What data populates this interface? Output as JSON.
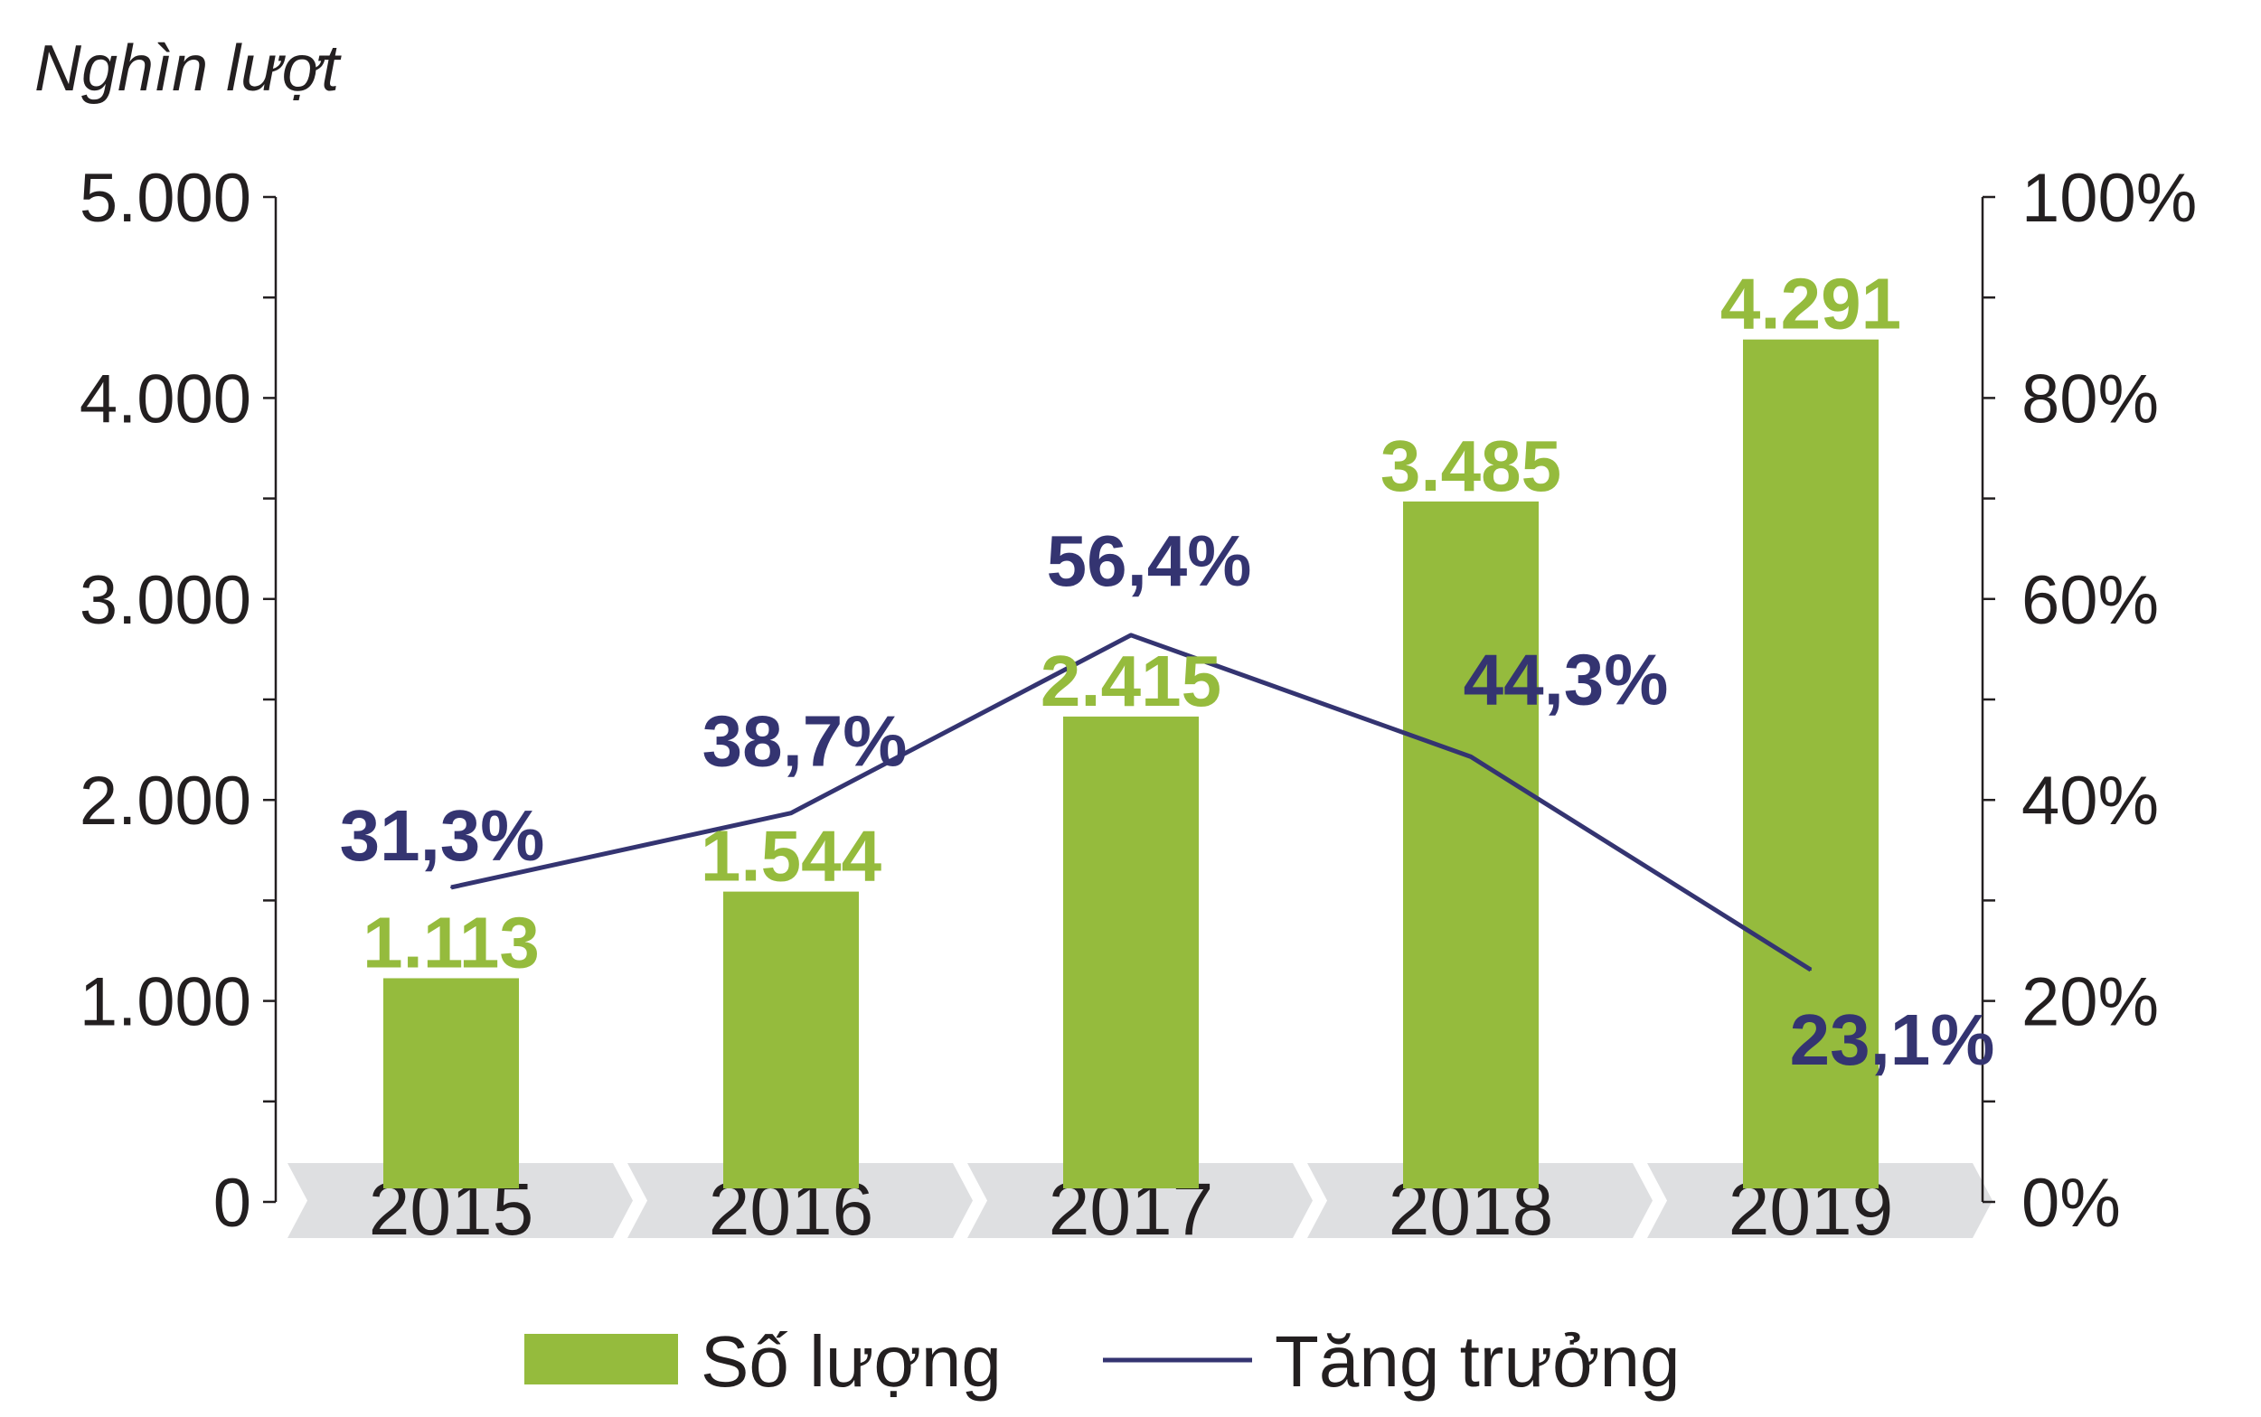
{
  "chart_data": {
    "type": "bar",
    "unit_label": "Nghìn lượt",
    "categories": [
      "2015",
      "2016",
      "2017",
      "2018",
      "2019"
    ],
    "bar_series": {
      "name": "Số lượng",
      "values": [
        1113,
        1544,
        2415,
        3485,
        4291
      ],
      "labels": [
        "1.113",
        "1.544",
        "2.415",
        "3.485",
        "4.291"
      ]
    },
    "line_series": {
      "name": "Tăng trưởng",
      "values": [
        31.3,
        38.7,
        56.4,
        44.3,
        23.1
      ],
      "labels": [
        "31,3%",
        "38,7%",
        "56,4%",
        "44,3%",
        "23,1%"
      ]
    },
    "y_left": {
      "min": 0,
      "max": 5000,
      "ticks": [
        0,
        1000,
        2000,
        3000,
        4000,
        5000
      ],
      "tick_labels": [
        "0",
        "1.000",
        "2.000",
        "3.000",
        "4.000",
        "5.000"
      ]
    },
    "y_right": {
      "min": 0,
      "max": 100,
      "ticks": [
        0,
        20,
        40,
        60,
        80,
        100
      ],
      "tick_labels": [
        "0%",
        "20%",
        "40%",
        "60%",
        "80%",
        "100%"
      ]
    },
    "grid": false,
    "legend_position": "bottom",
    "colors": {
      "bar": "#95bb3d",
      "line": "#343471",
      "axis": "#231f20",
      "category_band": "#dedfe1"
    }
  }
}
